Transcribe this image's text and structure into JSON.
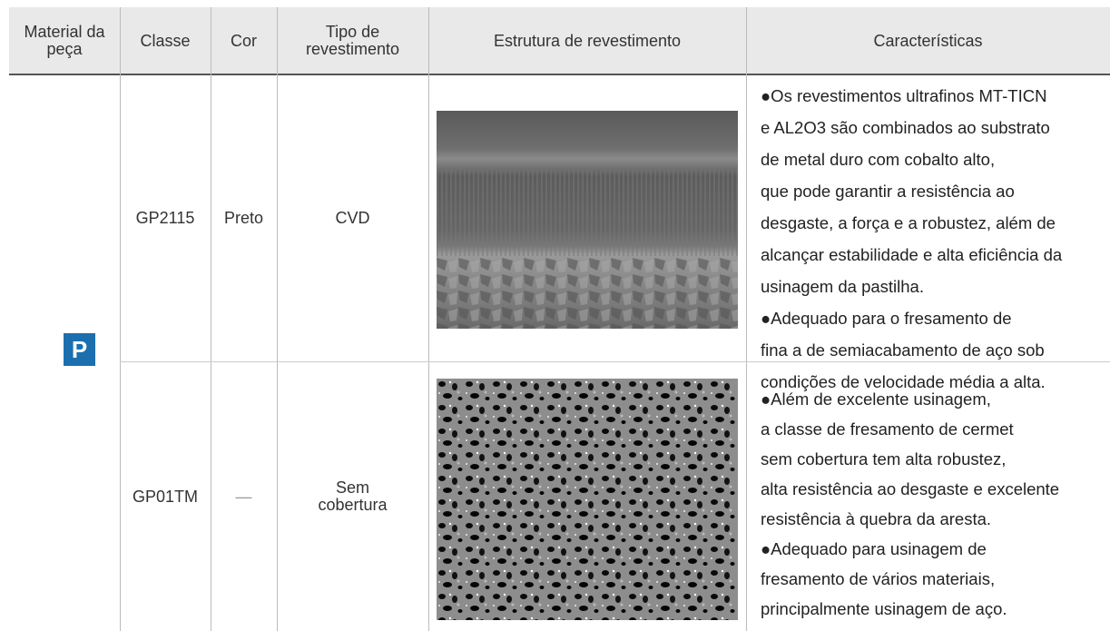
{
  "header": {
    "columns": [
      "Material da peça",
      "Classe",
      "Cor",
      "Tipo de revestimento",
      "Estrutura de revestimento",
      "Características"
    ]
  },
  "material": "P",
  "rows": [
    {
      "classe": "GP2115",
      "cor": "Preto",
      "tipo": "CVD",
      "caracteristicas": [
        "●Os revestimentos ultrafinos MT-TICN",
        "e AL2O3 são combinados ao substrato",
        "de metal duro com cobalto alto,",
        "que pode garantir a resistência ao",
        "desgaste, a força e a robustez, além de",
        "alcançar estabilidade e alta eficiência da",
        "usinagem da pastilha.",
        "●Adequado para o fresamento de",
        "fina a de semiacabamento de aço sob",
        "condições de velocidade média a alta."
      ]
    },
    {
      "classe": "GP01TM",
      "cor": "—",
      "tipo": "Sem cobertura",
      "caracteristicas": [
        "●Além de excelente usinagem,",
        "a classe de fresamento de cermet",
        "sem cobertura tem alta robustez,",
        "alta resistência ao desgaste e excelente",
        "resistência à quebra da aresta.",
        "●Adequado para usinagem de",
        "fresamento de vários materiais,",
        "principalmente usinagem de aço."
      ]
    }
  ]
}
